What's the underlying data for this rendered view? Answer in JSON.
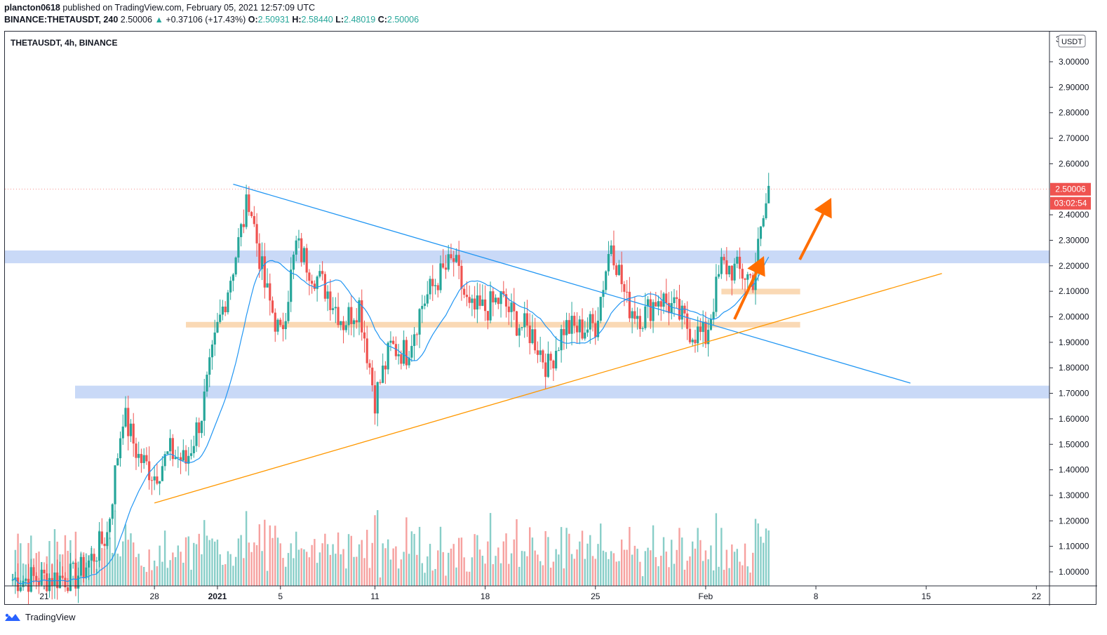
{
  "header": {
    "publisher": "plancton0618",
    "published_text": "published on TradingView.com, February 05, 2021 12:57:09 UTC",
    "symbol_line": "BINANCE:THETAUSDT, 240",
    "last": "2.50006",
    "change_arrow": "▲",
    "change": "+0.37106 (+17.43%)",
    "o_label": "O:",
    "o": "2.50931",
    "h_label": "H:",
    "h": "2.58440",
    "l_label": "L:",
    "l": "2.48019",
    "c_label": "C:",
    "c": "2.50006"
  },
  "chart_title": "THETAUSDT, 4h, BINANCE",
  "currency_badge": "USDT",
  "price_badge": "2.50006",
  "countdown_badge": "03:02:54",
  "footer_brand": "TradingView",
  "colors": {
    "up": "#26a69a",
    "down": "#ef5350",
    "ma": "#2196f3",
    "support_zone": "#bbd0f5",
    "orange_zone": "#f9d5ad",
    "trend_orange": "#ff9800",
    "arrow": "#ff6d00"
  },
  "chart_data": {
    "type": "candlestick",
    "title": "THETAUSDT, 4h, BINANCE",
    "y_ticks": [
      3.0,
      2.9,
      2.8,
      2.7,
      2.6,
      2.4,
      2.3,
      2.2,
      2.1,
      2.0,
      1.9,
      1.8,
      1.7,
      1.6,
      1.5,
      1.4,
      1.3,
      1.2,
      1.1,
      1.0
    ],
    "y_tick_top_partial": "3",
    "ylim": [
      0.95,
      3.07
    ],
    "x_tick_labels": [
      "21",
      "28",
      "2021",
      "5",
      "11",
      "18",
      "25",
      "Feb",
      "8",
      "15",
      "22"
    ],
    "x_tick_dates": [
      "2020-12-21",
      "2020-12-28",
      "2021-01-01",
      "2021-01-05",
      "2021-01-11",
      "2021-01-18",
      "2021-01-25",
      "2021-02-01",
      "2021-02-08",
      "2021-02-15",
      "2021-02-22"
    ],
    "price_path": [
      [
        "2020-12-19",
        0.97
      ],
      [
        "2020-12-23",
        0.98
      ],
      [
        "2020-12-24",
        1.05
      ],
      [
        "2020-12-25",
        1.15
      ],
      [
        "2020-12-26",
        1.62
      ],
      [
        "2020-12-27",
        1.45
      ],
      [
        "2020-12-28",
        1.38
      ],
      [
        "2020-12-29",
        1.47
      ],
      [
        "2020-12-30",
        1.43
      ],
      [
        "2020-12-31",
        1.62
      ],
      [
        "2021-01-01",
        1.95
      ],
      [
        "2021-01-02",
        2.2
      ],
      [
        "2021-01-03",
        2.47
      ],
      [
        "2021-01-04",
        2.12
      ],
      [
        "2021-01-05",
        1.92
      ],
      [
        "2021-01-06",
        2.28
      ],
      [
        "2021-01-07",
        2.18
      ],
      [
        "2021-01-08",
        2.1
      ],
      [
        "2021-01-09",
        1.98
      ],
      [
        "2021-01-10",
        2.05
      ],
      [
        "2021-01-11",
        1.68
      ],
      [
        "2021-01-12",
        1.88
      ],
      [
        "2021-01-13",
        1.86
      ],
      [
        "2021-01-14",
        2.05
      ],
      [
        "2021-01-15",
        2.15
      ],
      [
        "2021-01-16",
        2.22
      ],
      [
        "2021-01-17",
        2.02
      ],
      [
        "2021-01-18",
        2.03
      ],
      [
        "2021-01-19",
        2.07
      ],
      [
        "2021-01-20",
        1.98
      ],
      [
        "2021-01-21",
        1.93
      ],
      [
        "2021-01-22",
        1.8
      ],
      [
        "2021-01-23",
        1.96
      ],
      [
        "2021-01-24",
        1.95
      ],
      [
        "2021-01-25",
        1.97
      ],
      [
        "2021-01-26",
        2.3
      ],
      [
        "2021-01-27",
        2.05
      ],
      [
        "2021-01-28",
        2.0
      ],
      [
        "2021-01-29",
        2.08
      ],
      [
        "2021-01-30",
        2.03
      ],
      [
        "2021-01-31",
        1.95
      ],
      [
        "2021-02-01",
        1.92
      ],
      [
        "2021-02-02",
        2.2
      ],
      [
        "2021-02-03",
        2.18
      ],
      [
        "2021-02-04",
        2.15
      ],
      [
        "2021-02-05",
        2.5
      ]
    ],
    "moving_average": "20-period, blue",
    "blue_zones": [
      [
        2.21,
        2.26
      ],
      [
        1.68,
        1.73
      ]
    ],
    "orange_zones": [
      {
        "from": "2020-12-30",
        "to": "2021-02-07",
        "low": 1.96,
        "high": 1.98
      },
      {
        "from": "2021-02-02",
        "to": "2021-02-07",
        "low": 2.09,
        "high": 2.11
      }
    ],
    "trendlines": [
      {
        "color": "blue",
        "from": [
          "2021-01-02",
          2.52
        ],
        "to": [
          "2021-02-14",
          1.74
        ]
      },
      {
        "color": "orange",
        "from": [
          "2020-12-28",
          1.27
        ],
        "to": [
          "2021-02-16",
          2.17
        ]
      }
    ]
  }
}
